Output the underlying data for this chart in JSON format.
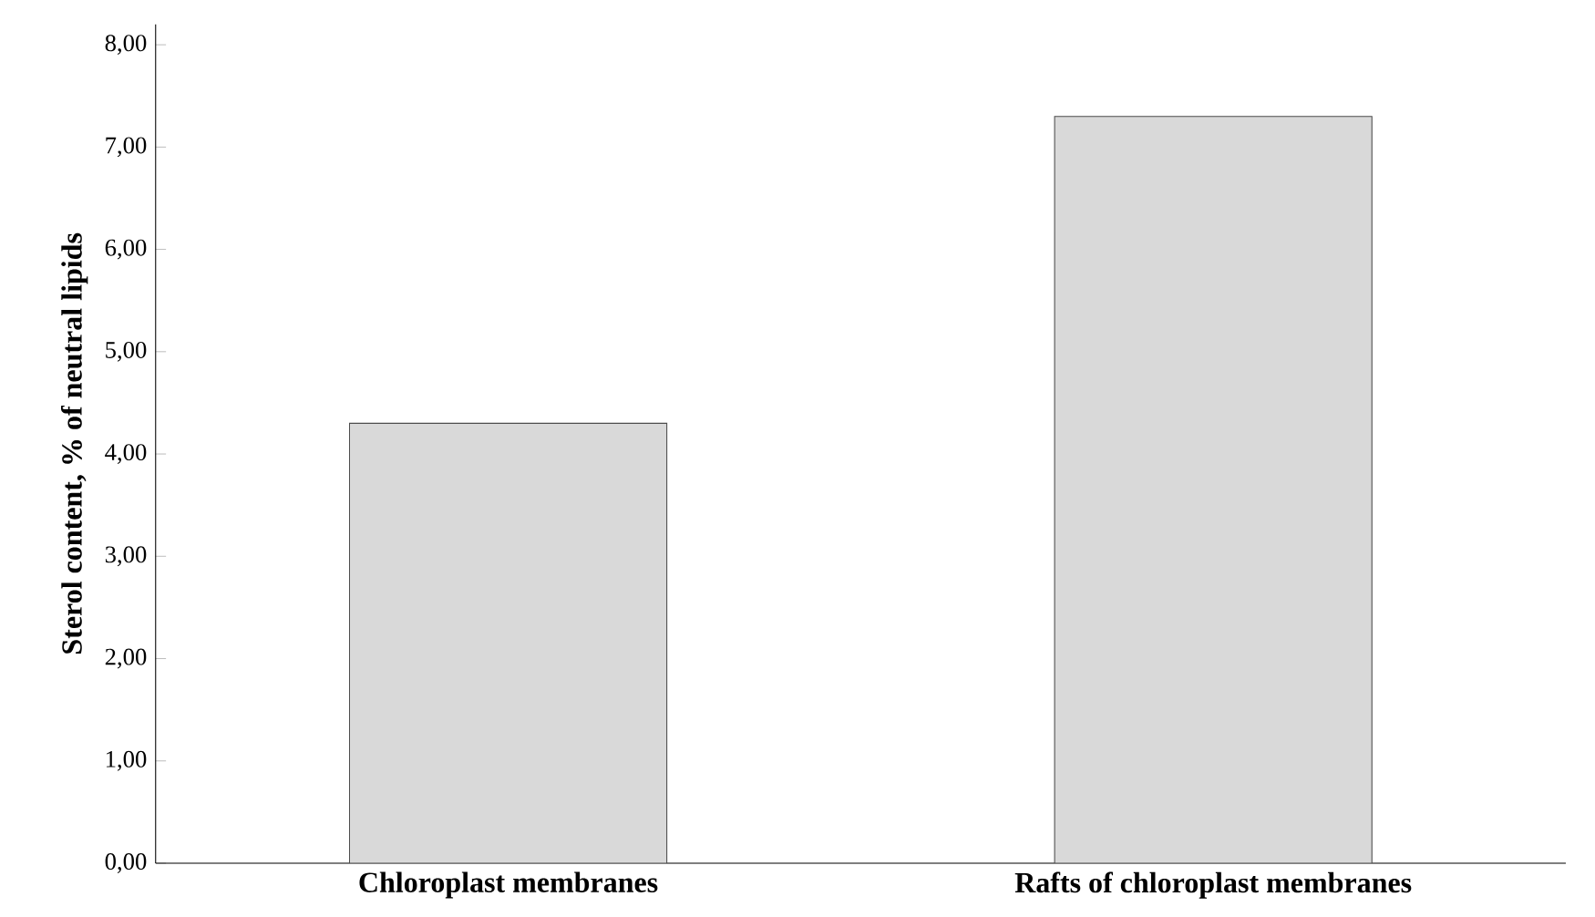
{
  "chart_data": {
    "type": "bar",
    "ylabel": "Sterol content, % of neutral lipids",
    "categories": [
      "Chloroplast membranes",
      "Rafts of chloroplast membranes"
    ],
    "values": [
      4.3,
      7.3
    ],
    "color": "#d9d9d9",
    "ylim": [
      0,
      8.2
    ],
    "yticks": [
      {
        "value": 0,
        "label": "0,00"
      },
      {
        "value": 1,
        "label": "1,00"
      },
      {
        "value": 2,
        "label": "2,00"
      },
      {
        "value": 3,
        "label": "3,00"
      },
      {
        "value": 4,
        "label": "4,00"
      },
      {
        "value": 5,
        "label": "5,00"
      },
      {
        "value": 6,
        "label": "6,00"
      },
      {
        "value": 7,
        "label": "7,00"
      },
      {
        "value": 8,
        "label": "8,00"
      }
    ],
    "grid": false
  }
}
